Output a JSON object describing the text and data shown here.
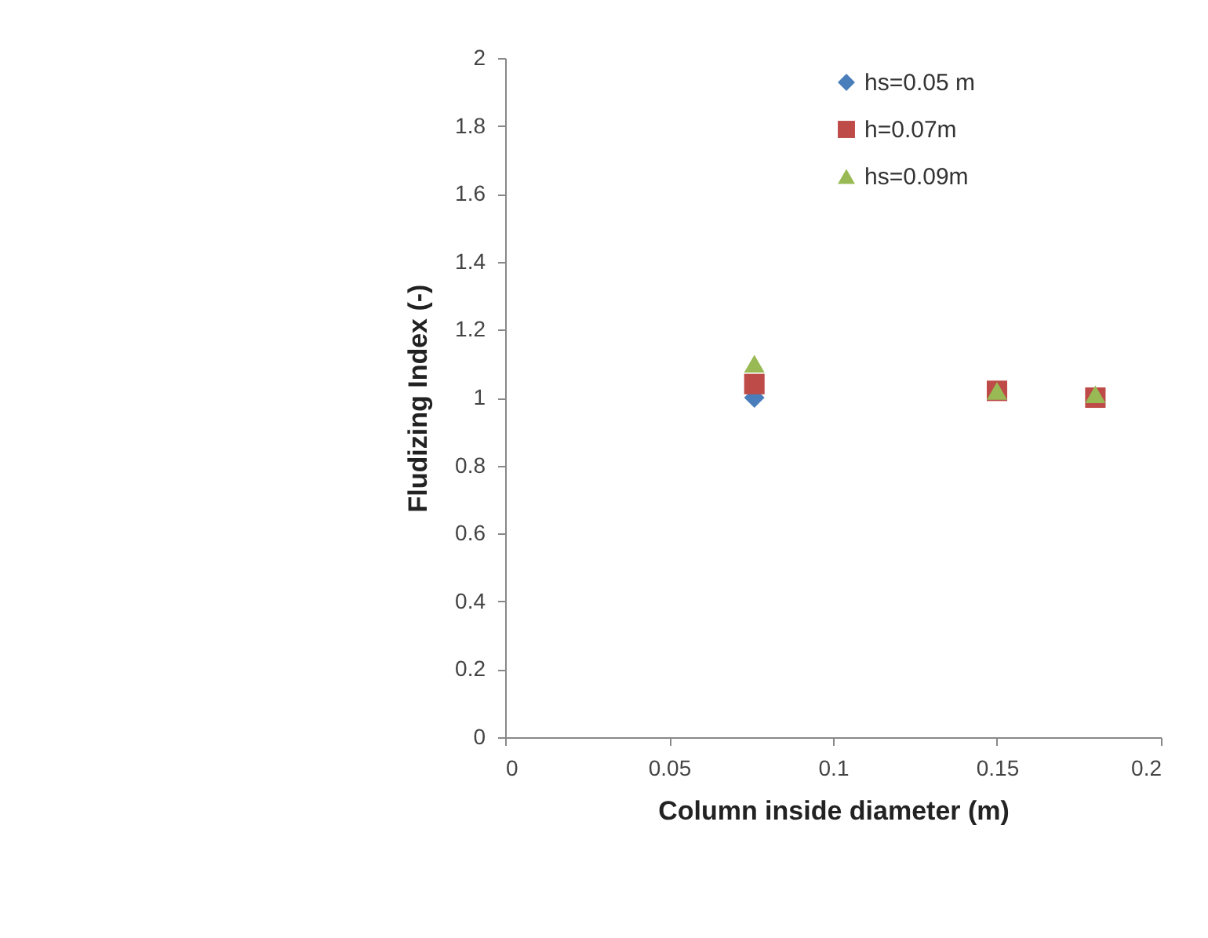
{
  "chart_data": {
    "type": "scatter",
    "xlabel": "Column inside diameter (m)",
    "ylabel": "Fludizing Index (-)",
    "x": [
      0.076,
      0.15,
      0.18
    ],
    "series": [
      {
        "name": "hs=0.05 m",
        "color": "#4a7ebb",
        "marker": "diamond",
        "values": [
          1.0,
          null,
          null
        ]
      },
      {
        "name": "h=0.07m",
        "color": "#be4b48",
        "marker": "square",
        "values": [
          1.04,
          1.02,
          1.0
        ]
      },
      {
        "name": "hs=0.09m",
        "color": "#98b954",
        "marker": "triangle",
        "values": [
          1.1,
          1.02,
          1.01
        ]
      }
    ],
    "xlim": [
      0,
      0.2
    ],
    "xticks": [
      0,
      0.05,
      0.1,
      0.15,
      0.2
    ],
    "ylim": [
      0,
      2
    ],
    "yticks": [
      0,
      0.2,
      0.4,
      0.6,
      0.8,
      1,
      1.2,
      1.4,
      1.6,
      1.8,
      2
    ],
    "grid": false,
    "legend": "top right"
  }
}
